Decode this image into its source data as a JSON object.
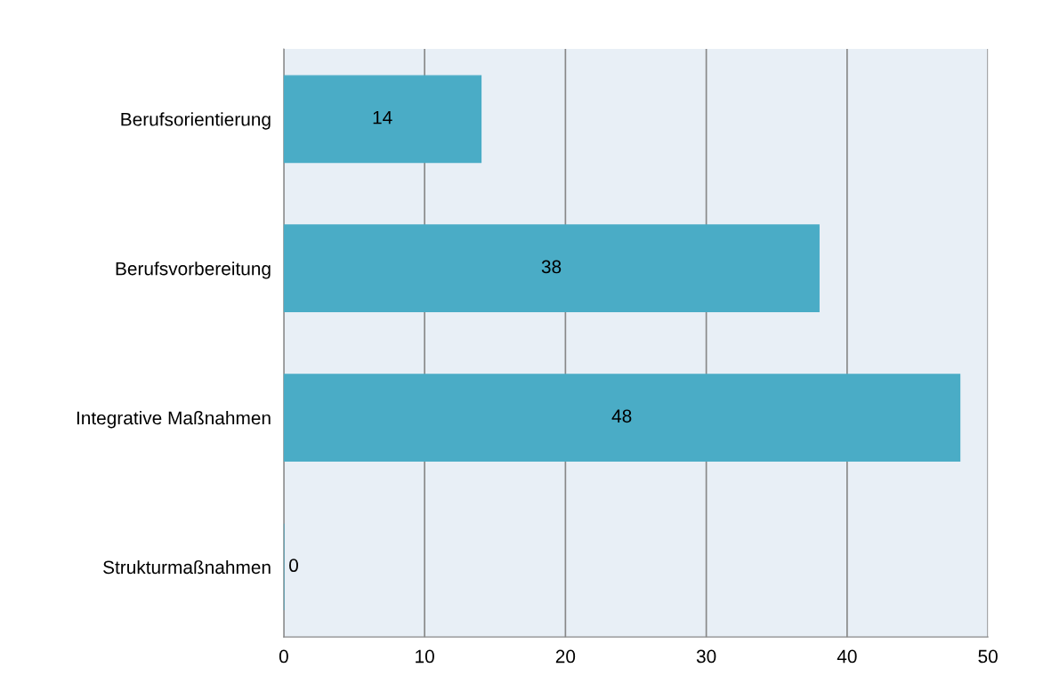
{
  "chart_data": {
    "type": "bar",
    "orientation": "horizontal",
    "categories": [
      "Berufsorientierung",
      "Berufsvorbereitung",
      "Integrative Maßnahmen",
      "Strukturmaßnahmen"
    ],
    "values": [
      14,
      38,
      48,
      0
    ],
    "color": "#4aacc6",
    "xlim": [
      0,
      50
    ],
    "xticks": [
      0,
      10,
      20,
      30,
      40,
      50
    ],
    "grid": "x",
    "data_labels": true
  }
}
